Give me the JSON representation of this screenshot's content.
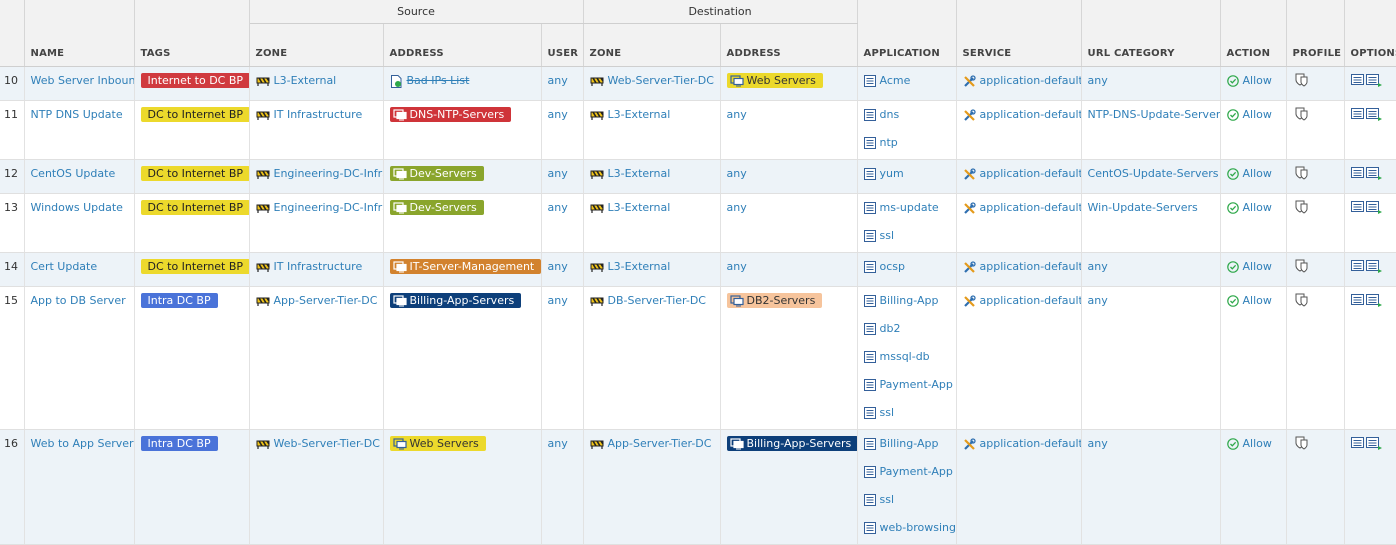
{
  "header": {
    "groups": [
      "Source",
      "Destination"
    ],
    "columns": [
      "NAME",
      "TAGS",
      "ZONE",
      "ADDRESS",
      "USER",
      "ZONE",
      "ADDRESS",
      "APPLICATION",
      "SERVICE",
      "URL CATEGORY",
      "ACTION",
      "PROFILE",
      "OPTIONS"
    ]
  },
  "rows": [
    {
      "number": "10",
      "name": "Web Server Inbound",
      "tag": {
        "text": "Internet to DC BP",
        "color": "#d03a3f"
      },
      "source_zone": "L3-External",
      "source_address": {
        "text": "Bad IPs List",
        "strikethrough": true
      },
      "user": "any",
      "destination_zone": "Web-Server-Tier-DC",
      "destination_address": {
        "text": "Web Servers",
        "color": "#ecd92c"
      },
      "applications": [
        "Acme"
      ],
      "service": "application-default",
      "url_category": "any",
      "action": "Allow"
    },
    {
      "number": "11",
      "name": "NTP DNS Update",
      "tag": {
        "text": "DC to Internet BP",
        "color": "#ecd92c"
      },
      "source_zone": "IT Infrastructure",
      "source_address": {
        "text": "DNS-NTP-Servers",
        "color": "#cf3439"
      },
      "user": "any",
      "destination_zone": "L3-External",
      "destination_address": "any",
      "applications": [
        "dns",
        "ntp"
      ],
      "service": "application-default",
      "url_category": "NTP-DNS-Update-Servers",
      "action": "Allow"
    },
    {
      "number": "12",
      "name": "CentOS Update",
      "tag": {
        "text": "DC to Internet BP",
        "color": "#ecd92c"
      },
      "source_zone": "Engineering-DC-Infra",
      "source_address": {
        "text": "Dev-Servers",
        "color": "#8aa52c"
      },
      "user": "any",
      "destination_zone": "L3-External",
      "destination_address": "any",
      "applications": [
        "yum"
      ],
      "service": "application-default",
      "url_category": "CentOS-Update-Servers",
      "action": "Allow"
    },
    {
      "number": "13",
      "name": "Windows Update",
      "tag": {
        "text": "DC to Internet BP",
        "color": "#ecd92c"
      },
      "source_zone": "Engineering-DC-Infra",
      "source_address": {
        "text": "Dev-Servers",
        "color": "#8aa52c"
      },
      "user": "any",
      "destination_zone": "L3-External",
      "destination_address": "any",
      "applications": [
        "ms-update",
        "ssl"
      ],
      "service": "application-default",
      "url_category": "Win-Update-Servers",
      "action": "Allow"
    },
    {
      "number": "14",
      "name": "Cert Update",
      "tag": {
        "text": "DC to Internet BP",
        "color": "#ecd92c"
      },
      "source_zone": "IT Infrastructure",
      "source_address": {
        "text": "IT-Server-Management",
        "color": "#d2822e"
      },
      "user": "any",
      "destination_zone": "L3-External",
      "destination_address": "any",
      "applications": [
        "ocsp"
      ],
      "service": "application-default",
      "url_category": "any",
      "action": "Allow"
    },
    {
      "number": "15",
      "name": "App to DB Server",
      "tag": {
        "text": "Intra DC BP",
        "color": "#4a73d9"
      },
      "source_zone": "App-Server-Tier-DC",
      "source_address": {
        "text": "Billing-App-Servers",
        "color": "#0d3f7a"
      },
      "user": "any",
      "destination_zone": "DB-Server-Tier-DC",
      "destination_address": {
        "text": "DB2-Servers",
        "color": "#f6c49c"
      },
      "applications": [
        "Billing-App",
        "db2",
        "mssql-db",
        "Payment-App",
        "ssl"
      ],
      "service": "application-default",
      "url_category": "any",
      "action": "Allow"
    },
    {
      "number": "16",
      "name": "Web to App Server",
      "tag": {
        "text": "Intra DC BP",
        "color": "#4a73d9"
      },
      "source_zone": "Web-Server-Tier-DC",
      "source_address": {
        "text": "Web Servers",
        "color": "#ecd92c"
      },
      "user": "any",
      "destination_zone": "App-Server-Tier-DC",
      "destination_address": {
        "text": "Billing-App-Servers",
        "color": "#0d3f7a"
      },
      "applications": [
        "Billing-App",
        "Payment-App",
        "ssl",
        "web-browsing"
      ],
      "service": "application-default",
      "url_category": "any",
      "action": "Allow"
    }
  ]
}
